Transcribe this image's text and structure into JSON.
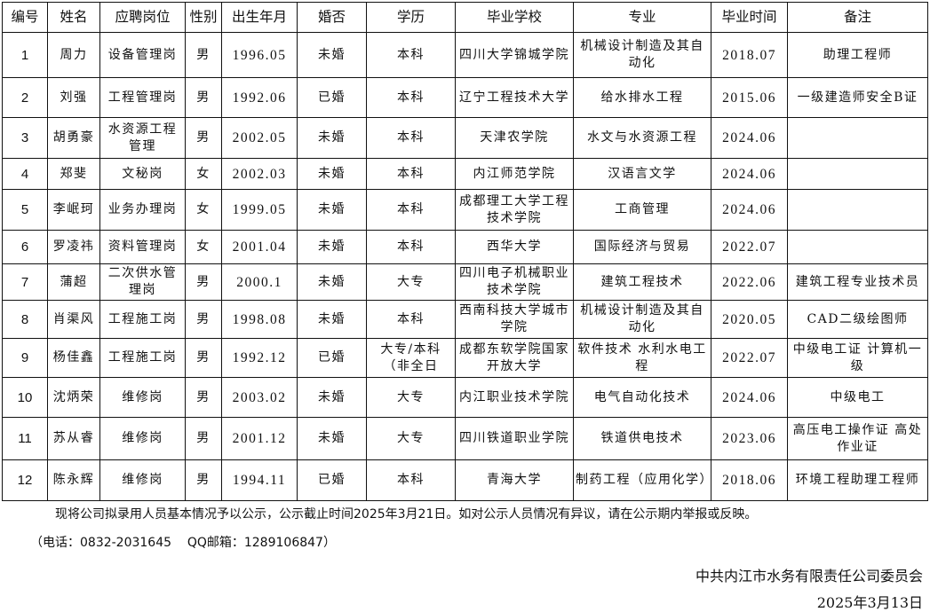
{
  "table": {
    "headers": [
      "编号",
      "姓名",
      "应聘岗位",
      "性别",
      "出生年月",
      "婚否",
      "学历",
      "毕业学校",
      "专业",
      "毕业时间",
      "备注"
    ],
    "rows": [
      [
        "1",
        "周力",
        "设备管理岗",
        "男",
        "1996.05",
        "未婚",
        "本科",
        "四川大学锦城学院",
        "机械设计制造及其自动化",
        "2018.07",
        "助理工程师"
      ],
      [
        "2",
        "刘强",
        "工程管理岗",
        "男",
        "1992.06",
        "已婚",
        "本科",
        "辽宁工程技术大学",
        "给水排水工程",
        "2015.06",
        "一级建造师安全B证"
      ],
      [
        "3",
        "胡勇豪",
        "水资源工程管理",
        "男",
        "2002.05",
        "未婚",
        "本科",
        "天津农学院",
        "水文与水资源工程",
        "2024.06",
        ""
      ],
      [
        "4",
        "郑斐",
        "文秘岗",
        "女",
        "2002.03",
        "未婚",
        "本科",
        "内江师范学院",
        "汉语言文学",
        "2024.06",
        ""
      ],
      [
        "5",
        "李岷珂",
        "业务办理岗",
        "女",
        "1999.05",
        "未婚",
        "本科",
        "成都理工大学工程技术学院",
        "工商管理",
        "2024.06",
        ""
      ],
      [
        "6",
        "罗凌祎",
        "资料管理岗",
        "女",
        "2001.04",
        "未婚",
        "本科",
        "西华大学",
        "国际经济与贸易",
        "2022.07",
        ""
      ],
      [
        "7",
        "蒲超",
        "二次供水管理岗",
        "男",
        "2000.1",
        "未婚",
        "大专",
        "四川电子机械职业技术学院",
        "建筑工程技术",
        "2022.06",
        "建筑工程专业技术员"
      ],
      [
        "8",
        "肖渠风",
        "工程施工岗",
        "男",
        "1998.08",
        "未婚",
        "本科",
        "西南科技大学城市学院",
        "机械设计制造及其自动化",
        "2020.05",
        "CAD二级绘图师"
      ],
      [
        "9",
        "杨佳鑫",
        "工程施工岗",
        "男",
        "1992.12",
        "已婚",
        "大专/本科（非全日",
        "成都东软学院国家开放大学",
        "软件技术 水利水电工程",
        "2022.07",
        "中级电工证 计算机一级"
      ],
      [
        "10",
        "沈炳荣",
        "维修岗",
        "男",
        "2003.02",
        "未婚",
        "大专",
        "内江职业技术学院",
        "电气自动化技术",
        "2024.06",
        "中级电工"
      ],
      [
        "11",
        "苏从睿",
        "维修岗",
        "男",
        "2001.12",
        "未婚",
        "大专",
        "四川铁道职业学院",
        "铁道供电技术",
        "2023.06",
        "高压电工操作证 高处作业证"
      ],
      [
        "12",
        "陈永辉",
        "维修岗",
        "男",
        "1994.11",
        "已婚",
        "本科",
        "青海大学",
        "制药工程（应用化学）",
        "2018.06",
        "环境工程助理工程师"
      ]
    ]
  },
  "footer": {
    "notice": "现将公司拟录用人员基本情况予以公示，公示截止时间2025年3月21日。如对公示人员情况有异议，请在公示期内举报或反映。",
    "contact": "（电话：0832-2031645    QQ邮箱：1289106847）",
    "organization": "中共内江市水务有限责任公司委员会",
    "date": "2025年3月13日"
  }
}
